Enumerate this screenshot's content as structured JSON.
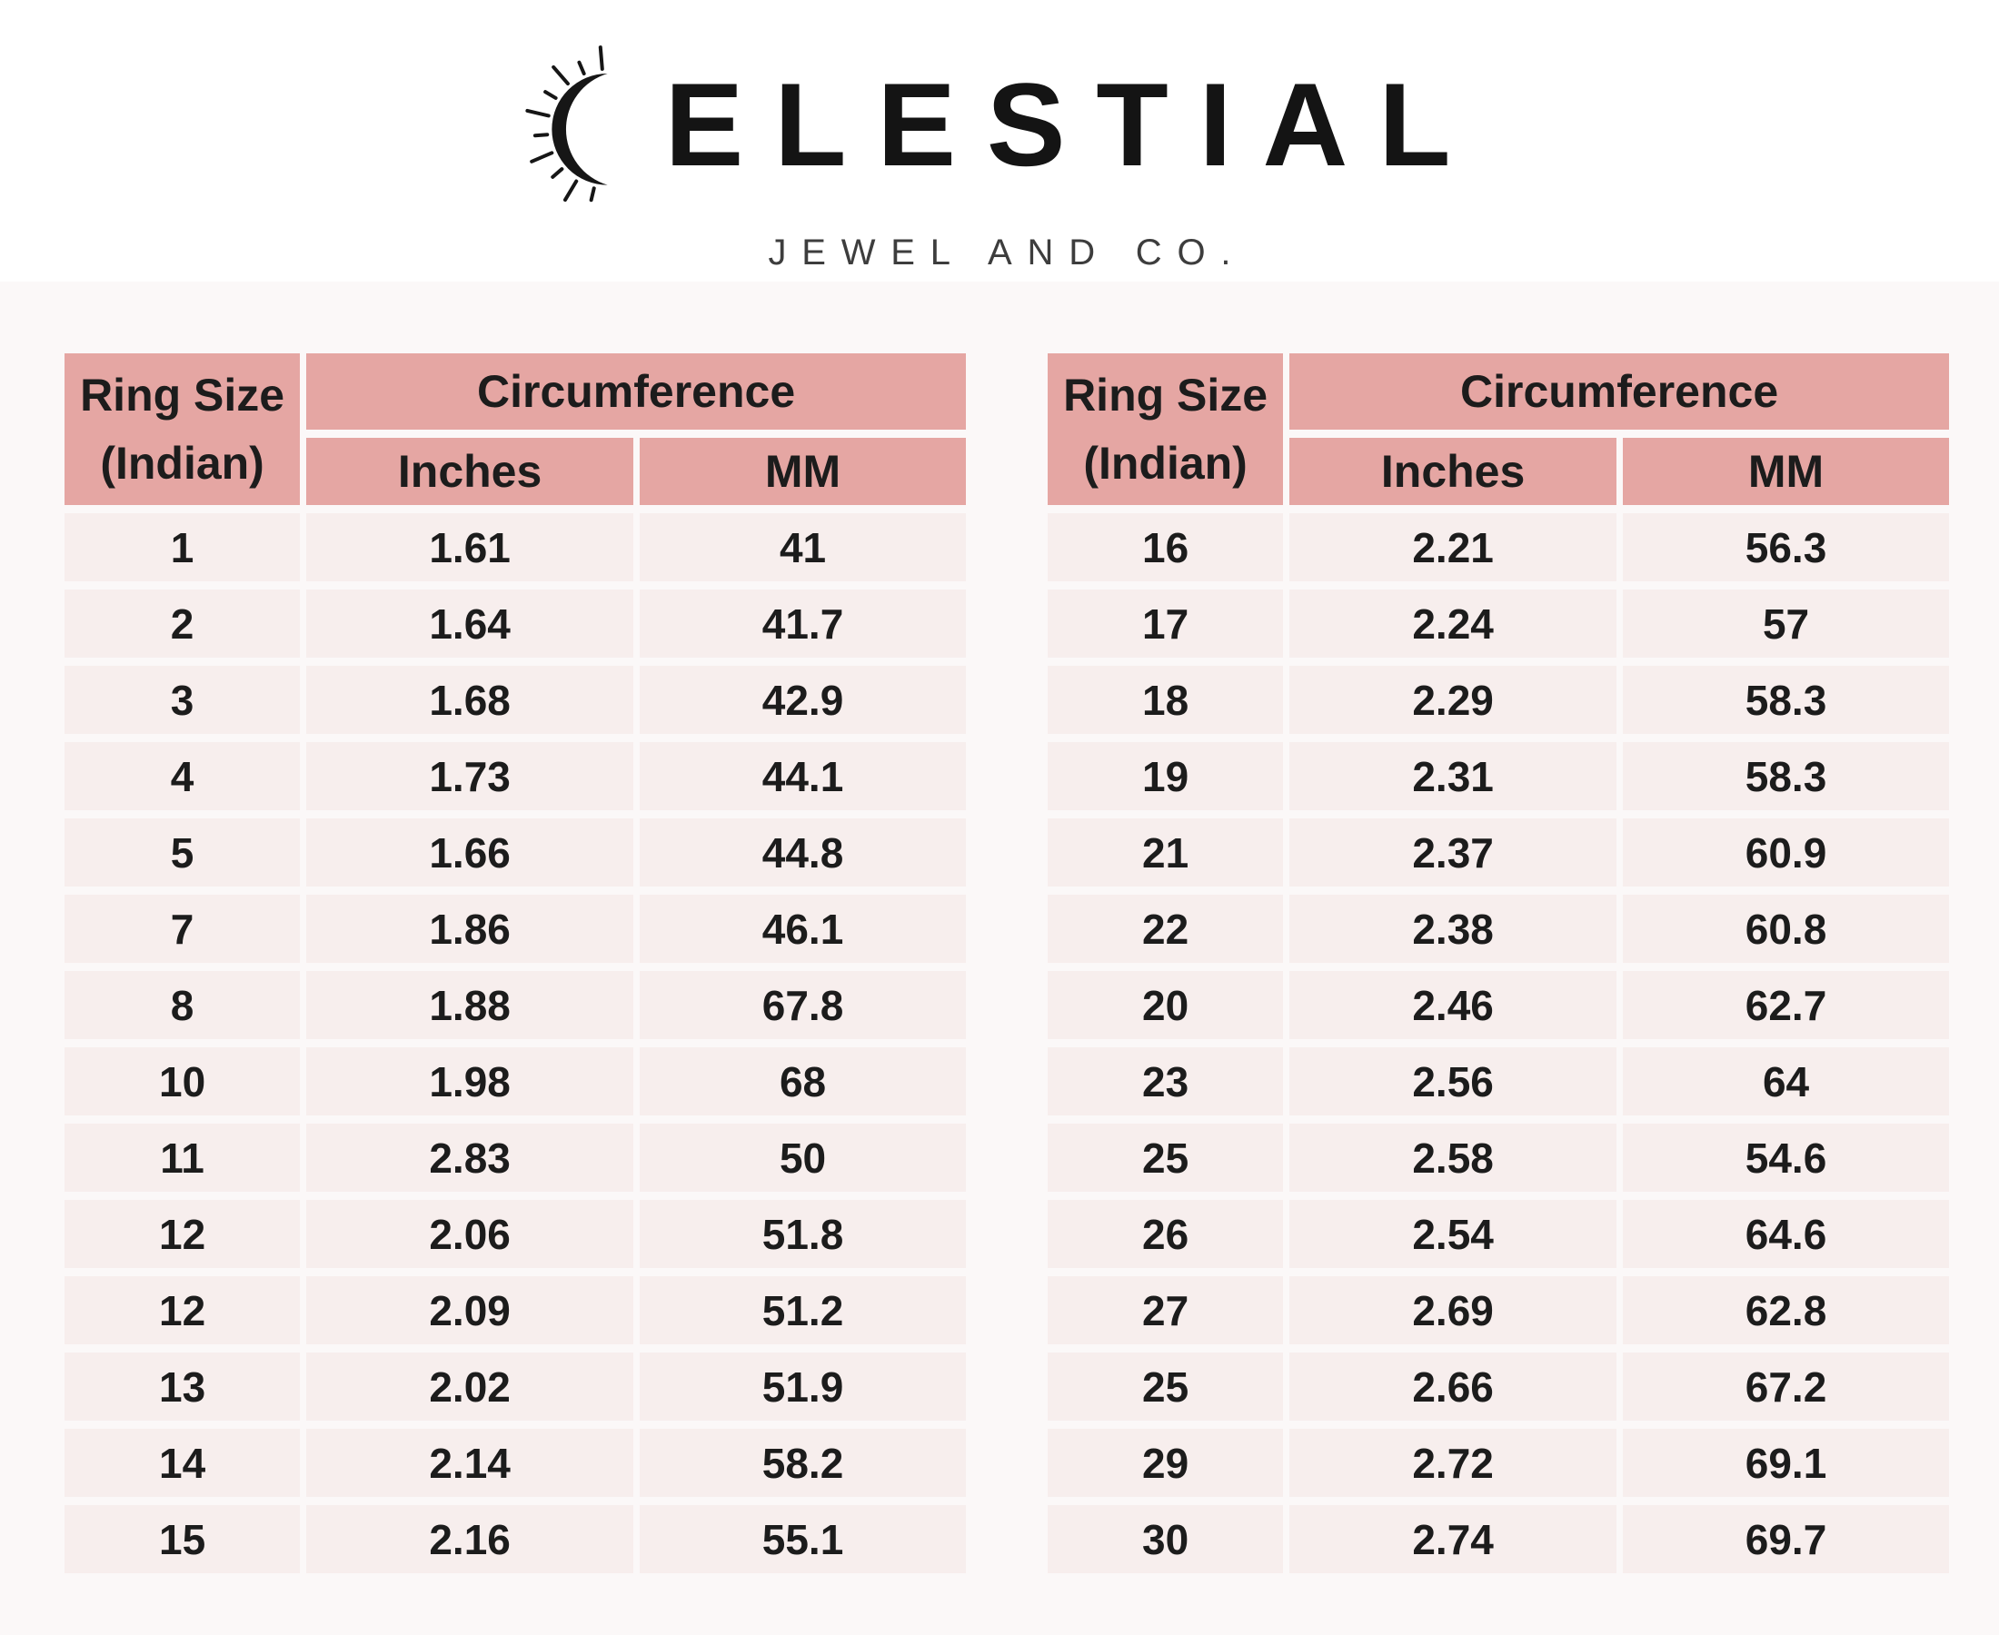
{
  "logo": {
    "brand_full": "CELESTIAL",
    "brand_after_icon": "ELESTIAL",
    "tagline": "JEWEL AND CO.",
    "icon": "sun-crescent-icon"
  },
  "table_headers": {
    "ring_size": "Ring Size",
    "ring_size_qualifier": "(Indian)",
    "circumference": "Circumference",
    "inches": "Inches",
    "mm": "MM"
  },
  "colors": {
    "header_bg": "#e5a6a3",
    "row_bg": "#f7eeed",
    "content_bg": "#fbf8f8",
    "page_bg": "#ffffff",
    "text": "#1c1c1c"
  },
  "left_table": {
    "rows": [
      [
        "1",
        "1.61",
        "41"
      ],
      [
        "2",
        "1.64",
        "41.7"
      ],
      [
        "3",
        "1.68",
        "42.9"
      ],
      [
        "4",
        "1.73",
        "44.1"
      ],
      [
        "5",
        "1.66",
        "44.8"
      ],
      [
        "7",
        "1.86",
        "46.1"
      ],
      [
        "8",
        "1.88",
        "67.8"
      ],
      [
        "10",
        "1.98",
        "68"
      ],
      [
        "11",
        "2.83",
        "50"
      ],
      [
        "12",
        "2.06",
        "51.8"
      ],
      [
        "12",
        "2.09",
        "51.2"
      ],
      [
        "13",
        "2.02",
        "51.9"
      ],
      [
        "14",
        "2.14",
        "58.2"
      ],
      [
        "15",
        "2.16",
        "55.1"
      ]
    ]
  },
  "right_table": {
    "rows": [
      [
        "16",
        "2.21",
        "56.3"
      ],
      [
        "17",
        "2.24",
        "57"
      ],
      [
        "18",
        "2.29",
        "58.3"
      ],
      [
        "19",
        "2.31",
        "58.3"
      ],
      [
        "21",
        "2.37",
        "60.9"
      ],
      [
        "22",
        "2.38",
        "60.8"
      ],
      [
        "20",
        "2.46",
        "62.7"
      ],
      [
        "23",
        "2.56",
        "64"
      ],
      [
        "25",
        "2.58",
        "54.6"
      ],
      [
        "26",
        "2.54",
        "64.6"
      ],
      [
        "27",
        "2.69",
        "62.8"
      ],
      [
        "25",
        "2.66",
        "67.2"
      ],
      [
        "29",
        "2.72",
        "69.1"
      ],
      [
        "30",
        "2.74",
        "69.7"
      ]
    ]
  }
}
